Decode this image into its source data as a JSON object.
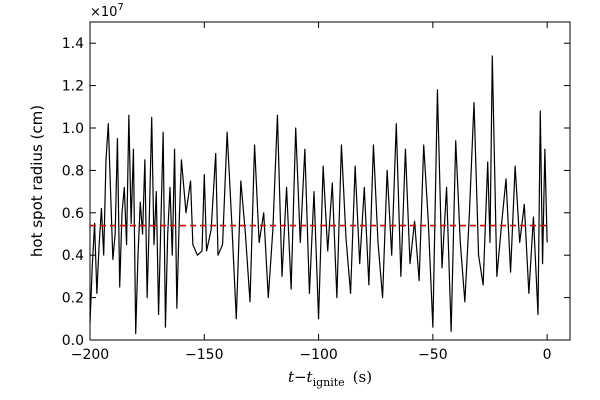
{
  "chart_data": {
    "type": "line",
    "title": "",
    "ylabel": "hot spot radius (cm)",
    "xlabel": {
      "main": "t−t",
      "subscript": "ignite",
      "units": "(s)"
    },
    "y_multiplier": {
      "base": "×10",
      "exponent": "7"
    },
    "xlim": [
      -200,
      10
    ],
    "ylim": [
      0.0,
      1.5
    ],
    "x_ticks": [
      -200,
      -150,
      -100,
      -50,
      0
    ],
    "x_tick_labels": [
      "−200",
      "−150",
      "−100",
      "−50",
      "0"
    ],
    "y_ticks": [
      0.0,
      0.2,
      0.4,
      0.6,
      0.8,
      1.0,
      1.2,
      1.4
    ],
    "y_tick_labels": [
      "0.0",
      "0.2",
      "0.4",
      "0.6",
      "0.8",
      "1.0",
      "1.2",
      "1.4"
    ],
    "grid": false,
    "series": [
      {
        "color": "#000000",
        "style": "solid",
        "x": [
          -200,
          -199,
          -198,
          -197,
          -196,
          -195,
          -194,
          -193,
          -192,
          -191,
          -190,
          -189,
          -188,
          -187,
          -186,
          -185,
          -184,
          -183,
          -182,
          -181,
          -180,
          -179,
          -178,
          -177,
          -176,
          -175,
          -174,
          -173,
          -172,
          -171,
          -170,
          -169,
          -168,
          -167,
          -166,
          -165,
          -164,
          -163,
          -162,
          -161,
          -160,
          -158,
          -156,
          -155,
          -153,
          -151,
          -150,
          -149,
          -147,
          -145,
          -144,
          -142,
          -140,
          -138,
          -136,
          -134,
          -132,
          -130,
          -128,
          -126,
          -124,
          -122,
          -120,
          -118,
          -116,
          -114,
          -112,
          -110,
          -108,
          -106,
          -104,
          -102,
          -100,
          -98,
          -96,
          -94,
          -92,
          -90,
          -88,
          -86,
          -84,
          -82,
          -80,
          -78,
          -76,
          -74,
          -72,
          -70,
          -68,
          -66,
          -64,
          -62,
          -60,
          -58,
          -56,
          -54,
          -52,
          -50,
          -48,
          -46,
          -44,
          -42,
          -40,
          -38,
          -36,
          -34,
          -32,
          -30,
          -28,
          -26,
          -25,
          -24,
          -22,
          -20,
          -18,
          -16,
          -14,
          -12,
          -10,
          -8,
          -6,
          -4,
          -3,
          -2,
          -1,
          0
        ],
        "values": [
          0.08,
          0.35,
          0.55,
          0.22,
          0.45,
          0.62,
          0.4,
          0.85,
          1.02,
          0.7,
          0.38,
          0.5,
          0.95,
          0.25,
          0.6,
          0.72,
          0.45,
          1.06,
          0.55,
          0.9,
          0.03,
          0.4,
          0.65,
          0.5,
          0.85,
          0.2,
          0.6,
          1.05,
          0.45,
          0.7,
          0.12,
          0.55,
          0.98,
          0.06,
          0.5,
          0.72,
          0.4,
          0.9,
          0.15,
          0.55,
          0.85,
          0.6,
          0.75,
          0.45,
          0.4,
          0.42,
          0.78,
          0.42,
          0.52,
          0.88,
          0.4,
          0.45,
          0.98,
          0.56,
          0.1,
          0.75,
          0.5,
          0.18,
          0.92,
          0.46,
          0.6,
          0.2,
          0.52,
          1.06,
          0.3,
          0.72,
          0.24,
          1.0,
          0.46,
          0.9,
          0.22,
          0.7,
          0.1,
          0.82,
          0.42,
          0.74,
          0.2,
          0.92,
          0.48,
          0.22,
          0.82,
          0.36,
          0.72,
          0.26,
          0.92,
          0.46,
          0.2,
          0.8,
          0.4,
          1.02,
          0.3,
          0.9,
          0.36,
          0.56,
          0.28,
          0.92,
          0.56,
          0.06,
          1.18,
          0.34,
          0.72,
          0.04,
          0.94,
          0.46,
          0.18,
          0.6,
          1.12,
          0.4,
          0.26,
          0.84,
          0.46,
          1.34,
          0.3,
          0.54,
          0.76,
          0.32,
          0.82,
          0.46,
          0.64,
          0.22,
          0.58,
          0.12,
          1.08,
          0.36,
          0.9,
          0.46
        ]
      },
      {
        "color": "#cc0000",
        "style": "dashed",
        "x": [
          -200,
          0
        ],
        "values": [
          0.54,
          0.54
        ]
      }
    ]
  }
}
